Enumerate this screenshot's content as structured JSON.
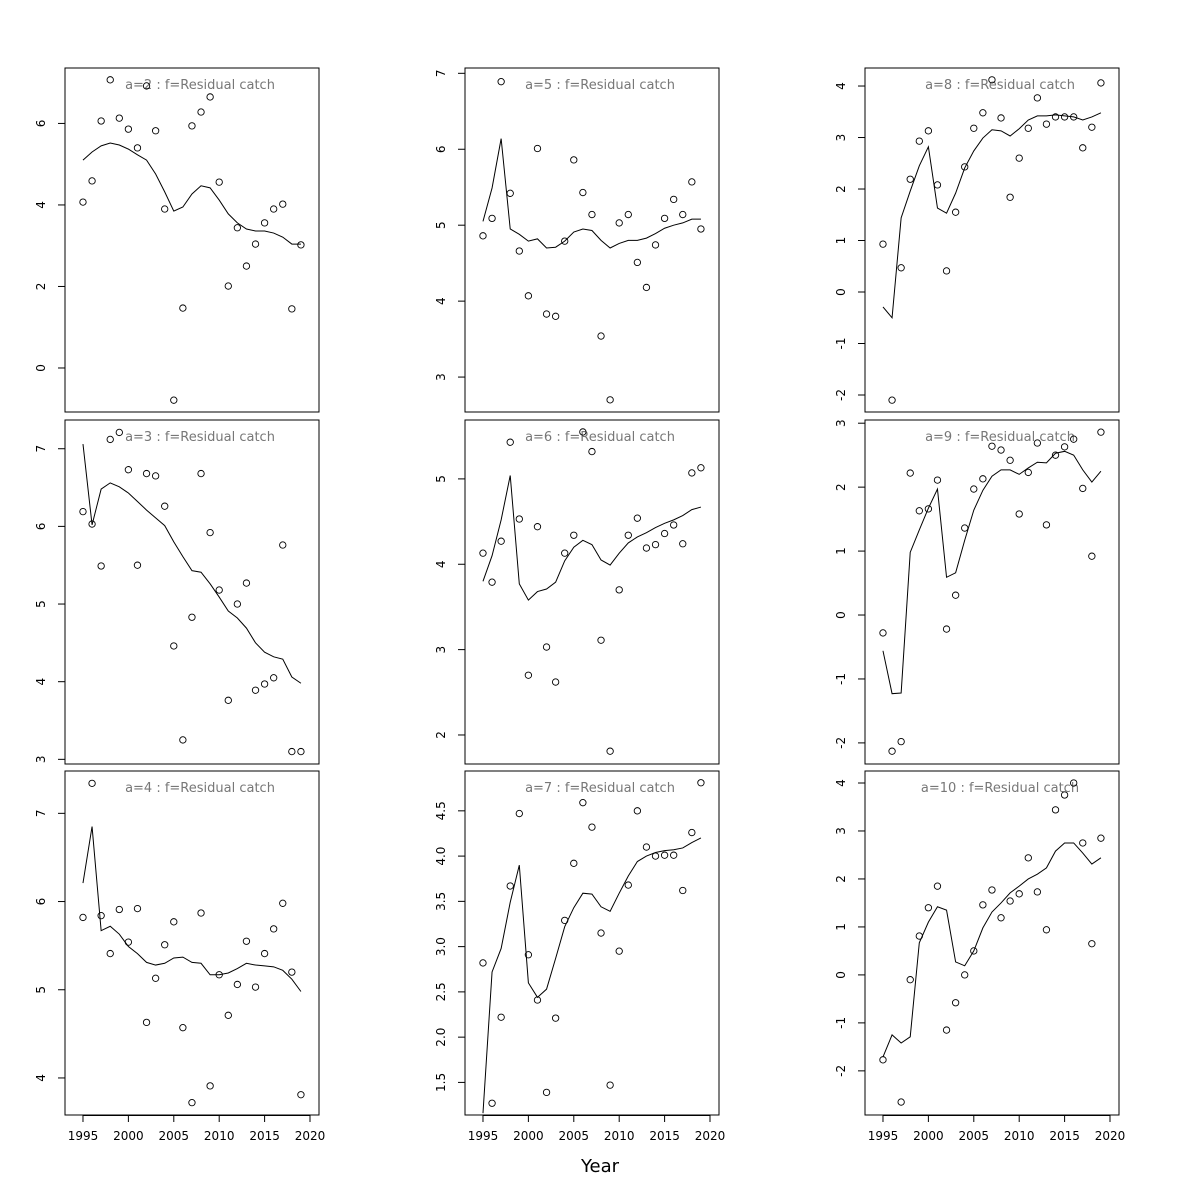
{
  "xlabel": "Year",
  "chart_data": [
    {
      "type": "scatter",
      "title": "a=2  :  f=Residual catch",
      "x": [
        1995,
        1996,
        1997,
        1998,
        1999,
        2000,
        2001,
        2002,
        2003,
        2004,
        2005,
        2006,
        2007,
        2008,
        2009,
        2010,
        2011,
        2012,
        2013,
        2014,
        2015,
        2016,
        2017,
        2018,
        2019
      ],
      "values": [
        4.07,
        4.59,
        6.06,
        7.07,
        6.13,
        5.86,
        5.4,
        6.92,
        5.82,
        3.9,
        -0.79,
        1.47,
        5.94,
        6.28,
        6.65,
        4.56,
        2.01,
        3.44,
        2.5,
        3.04,
        3.56,
        3.9,
        4.02,
        1.45,
        3.02
      ],
      "fit": [
        5.1,
        5.3,
        5.45,
        5.52,
        5.47,
        5.37,
        5.23,
        5.1,
        4.76,
        4.32,
        3.85,
        3.95,
        4.27,
        4.47,
        4.42,
        4.12,
        3.78,
        3.56,
        3.41,
        3.36,
        3.36,
        3.31,
        3.21,
        3.04,
        3.04
      ],
      "xlim": [
        1993.02,
        2020.99
      ],
      "ylim": [
        -1.08,
        7.36
      ],
      "yticks": [
        0,
        2,
        4,
        6
      ]
    },
    {
      "type": "scatter",
      "title": "a=3  :  f=Residual catch",
      "x": [
        1995,
        1996,
        1997,
        1998,
        1999,
        2000,
        2001,
        2002,
        2003,
        2004,
        2005,
        2006,
        2007,
        2008,
        2009,
        2010,
        2011,
        2012,
        2013,
        2014,
        2015,
        2016,
        2017,
        2018,
        2019
      ],
      "values": [
        6.19,
        6.03,
        5.49,
        7.12,
        7.21,
        6.73,
        5.5,
        6.68,
        6.65,
        6.26,
        4.46,
        3.25,
        4.83,
        6.68,
        5.92,
        5.18,
        3.76,
        5.0,
        5.27,
        3.89,
        3.97,
        4.05,
        5.76,
        3.1,
        3.1
      ],
      "fit": [
        7.06,
        6.02,
        6.48,
        6.56,
        6.51,
        6.43,
        6.32,
        6.21,
        6.11,
        6.01,
        5.8,
        5.61,
        5.43,
        5.41,
        5.26,
        5.09,
        4.91,
        4.82,
        4.69,
        4.5,
        4.38,
        4.32,
        4.29,
        4.06,
        3.98
      ],
      "xlim": [
        1993.02,
        2020.99
      ],
      "ylim": [
        2.94,
        7.37
      ],
      "yticks": [
        3,
        4,
        5,
        6,
        7
      ]
    },
    {
      "type": "scatter",
      "title": "a=4  :  f=Residual catch",
      "x": [
        1995,
        1996,
        1997,
        1998,
        1999,
        2000,
        2001,
        2002,
        2003,
        2004,
        2005,
        2006,
        2007,
        2008,
        2009,
        2010,
        2011,
        2012,
        2013,
        2014,
        2015,
        2016,
        2017,
        2018,
        2019
      ],
      "values": [
        5.82,
        7.34,
        5.84,
        5.41,
        5.91,
        5.54,
        5.92,
        4.63,
        5.13,
        5.51,
        5.77,
        4.57,
        3.72,
        5.87,
        3.91,
        5.17,
        4.71,
        5.06,
        5.55,
        5.03,
        5.41,
        5.69,
        5.98,
        5.2,
        3.81
      ],
      "fit": [
        6.21,
        6.85,
        5.67,
        5.72,
        5.63,
        5.49,
        5.41,
        5.31,
        5.28,
        5.3,
        5.36,
        5.37,
        5.31,
        5.3,
        5.17,
        5.17,
        5.19,
        5.24,
        5.3,
        5.28,
        5.27,
        5.26,
        5.22,
        5.12,
        4.98
      ],
      "xlim": [
        1993.02,
        2020.99
      ],
      "ylim": [
        3.58,
        7.48
      ],
      "yticks": [
        4,
        5,
        6,
        7
      ],
      "xticks": [
        1995,
        2000,
        2005,
        2010,
        2015,
        2020
      ]
    },
    {
      "type": "scatter",
      "title": "a=5  :  f=Residual catch",
      "x": [
        1995,
        1996,
        1997,
        1998,
        1999,
        2000,
        2001,
        2002,
        2003,
        2004,
        2005,
        2006,
        2007,
        2008,
        2009,
        2010,
        2011,
        2012,
        2013,
        2014,
        2015,
        2016,
        2017,
        2018,
        2019
      ],
      "values": [
        4.86,
        5.09,
        6.89,
        5.42,
        4.66,
        4.07,
        6.01,
        3.83,
        3.8,
        4.79,
        5.86,
        5.43,
        5.14,
        3.54,
        2.7,
        5.03,
        5.14,
        4.51,
        4.18,
        4.74,
        5.09,
        5.34,
        5.14,
        5.57,
        4.95
      ],
      "fit": [
        5.05,
        5.49,
        6.14,
        4.95,
        4.88,
        4.79,
        4.82,
        4.7,
        4.71,
        4.79,
        4.91,
        4.95,
        4.93,
        4.8,
        4.7,
        4.76,
        4.8,
        4.8,
        4.83,
        4.89,
        4.96,
        5.0,
        5.03,
        5.08,
        5.08
      ],
      "xlim": [
        1993.02,
        2020.99
      ],
      "ylim": [
        2.54,
        7.07
      ],
      "yticks": [
        3,
        4,
        5,
        6,
        7
      ]
    },
    {
      "type": "scatter",
      "title": "a=6  :  f=Residual catch",
      "x": [
        1995,
        1996,
        1997,
        1998,
        1999,
        2000,
        2001,
        2002,
        2003,
        2004,
        2005,
        2006,
        2007,
        2008,
        2009,
        2010,
        2011,
        2012,
        2013,
        2014,
        2015,
        2016,
        2017,
        2018,
        2019
      ],
      "values": [
        4.13,
        3.79,
        4.27,
        5.43,
        4.53,
        2.7,
        4.44,
        3.03,
        2.62,
        4.13,
        4.34,
        5.55,
        5.32,
        3.11,
        1.81,
        3.7,
        4.34,
        4.54,
        4.19,
        4.23,
        4.36,
        4.46,
        4.24,
        5.07,
        5.13
      ],
      "fit": [
        3.8,
        4.1,
        4.52,
        5.04,
        3.77,
        3.58,
        3.68,
        3.71,
        3.79,
        4.04,
        4.2,
        4.28,
        4.23,
        4.05,
        3.99,
        4.13,
        4.25,
        4.32,
        4.37,
        4.43,
        4.48,
        4.52,
        4.57,
        4.64,
        4.67
      ],
      "xlim": [
        1993.02,
        2020.99
      ],
      "ylim": [
        1.66,
        5.69
      ],
      "yticks": [
        2,
        3,
        4,
        5
      ]
    },
    {
      "type": "scatter",
      "title": "a=7  :  f=Residual catch",
      "x": [
        1995,
        1996,
        1997,
        1998,
        1999,
        2000,
        2001,
        2002,
        2003,
        2004,
        2005,
        2006,
        2007,
        2008,
        2009,
        2010,
        2011,
        2012,
        2013,
        2014,
        2015,
        2016,
        2017,
        2018,
        2019
      ],
      "values": [
        2.82,
        1.27,
        2.22,
        3.67,
        4.47,
        2.91,
        2.41,
        1.39,
        2.21,
        3.29,
        3.92,
        4.59,
        4.32,
        3.15,
        1.47,
        2.95,
        3.68,
        4.5,
        4.1,
        4.0,
        4.01,
        4.01,
        3.62,
        4.26,
        4.81
      ],
      "fit": [
        1.16,
        2.72,
        2.98,
        3.49,
        3.9,
        2.6,
        2.44,
        2.53,
        2.87,
        3.22,
        3.43,
        3.59,
        3.58,
        3.44,
        3.39,
        3.59,
        3.78,
        3.94,
        4.0,
        4.04,
        4.06,
        4.07,
        4.09,
        4.15,
        4.2
      ],
      "xlim": [
        1993.02,
        2020.99
      ],
      "ylim": [
        1.14,
        4.94
      ],
      "yticks": [
        1.5,
        {
          "value": 2,
          "label": "2.0"
        },
        2.5,
        {
          "value": 3,
          "label": "3.0"
        },
        3.5,
        {
          "value": 4,
          "label": "4.0"
        },
        4.5
      ],
      "xticks": [
        1995,
        2000,
        2005,
        2010,
        2015,
        2020
      ]
    },
    {
      "type": "scatter",
      "title": "a=8  :  f=Residual catch",
      "x": [
        1995,
        1996,
        1997,
        1998,
        1999,
        2000,
        2001,
        2002,
        2003,
        2004,
        2005,
        2006,
        2007,
        2008,
        2009,
        2010,
        2011,
        2012,
        2013,
        2014,
        2015,
        2016,
        2017,
        2018,
        2019
      ],
      "values": [
        0.93,
        -2.1,
        0.47,
        2.19,
        2.93,
        3.13,
        2.08,
        0.41,
        1.55,
        2.43,
        3.18,
        3.48,
        4.12,
        3.38,
        1.84,
        2.6,
        3.18,
        3.77,
        3.26,
        3.4,
        3.4,
        3.4,
        2.8,
        3.2,
        4.06
      ],
      "fit": [
        -0.29,
        -0.5,
        1.44,
        1.96,
        2.45,
        2.82,
        1.63,
        1.53,
        1.92,
        2.41,
        2.74,
        2.99,
        3.15,
        3.13,
        3.03,
        3.17,
        3.34,
        3.42,
        3.42,
        3.44,
        3.42,
        3.4,
        3.34,
        3.4,
        3.48
      ],
      "xlim": [
        1993.02,
        2020.99
      ],
      "ylim": [
        -2.33,
        4.35
      ],
      "yticks": [
        -2,
        -1,
        0,
        1,
        2,
        3,
        4
      ]
    },
    {
      "type": "scatter",
      "title": "a=9  :  f=Residual catch",
      "x": [
        1995,
        1996,
        1997,
        1998,
        1999,
        2000,
        2001,
        2002,
        2003,
        2004,
        2005,
        2006,
        2007,
        2008,
        2009,
        2010,
        2011,
        2012,
        2013,
        2014,
        2015,
        2016,
        2017,
        2018,
        2019
      ],
      "values": [
        -0.28,
        -2.13,
        -1.98,
        2.22,
        1.63,
        1.66,
        2.11,
        -0.22,
        0.31,
        1.36,
        1.97,
        2.13,
        2.64,
        2.58,
        2.42,
        1.58,
        2.23,
        2.69,
        1.41,
        2.5,
        2.63,
        2.75,
        1.98,
        0.92,
        2.86
      ],
      "fit": [
        -0.56,
        -1.23,
        -1.22,
        0.98,
        1.33,
        1.67,
        1.97,
        0.59,
        0.66,
        1.17,
        1.64,
        1.95,
        2.17,
        2.27,
        2.27,
        2.2,
        2.3,
        2.39,
        2.38,
        2.53,
        2.56,
        2.5,
        2.27,
        2.08,
        2.25
      ],
      "xlim": [
        1993.02,
        2020.99
      ],
      "ylim": [
        -2.33,
        3.05
      ],
      "yticks": [
        -2,
        -1,
        0,
        1,
        2,
        3
      ]
    },
    {
      "type": "scatter",
      "title": "a=10  :  f=Residual catch",
      "x": [
        1995,
        1996,
        1997,
        1998,
        1999,
        2000,
        2001,
        2002,
        2003,
        2004,
        2005,
        2006,
        2007,
        2008,
        2009,
        2010,
        2011,
        2012,
        2013,
        2014,
        2015,
        2016,
        2017,
        2018,
        2019
      ],
      "values": [
        -1.77,
        null,
        -2.65,
        -0.1,
        0.81,
        1.4,
        1.85,
        -1.15,
        -0.58,
        0.0,
        0.5,
        1.46,
        1.77,
        1.19,
        1.54,
        1.69,
        2.44,
        1.73,
        0.94,
        3.44,
        3.75,
        4.0,
        2.75,
        0.65,
        2.85
      ],
      "fit": [
        -1.71,
        -1.25,
        -1.42,
        -1.29,
        0.67,
        1.1,
        1.42,
        1.35,
        0.27,
        0.19,
        0.5,
        0.98,
        1.31,
        1.5,
        1.71,
        1.85,
        2.0,
        2.1,
        2.23,
        2.58,
        2.75,
        2.75,
        2.54,
        2.31,
        2.44
      ],
      "xlim": [
        1993.02,
        2020.99
      ],
      "ylim": [
        -2.92,
        4.25
      ],
      "yticks": [
        -2,
        -1,
        0,
        1,
        2,
        3,
        4
      ],
      "xticks": [
        1995,
        2000,
        2005,
        2010,
        2015,
        2020
      ]
    }
  ]
}
